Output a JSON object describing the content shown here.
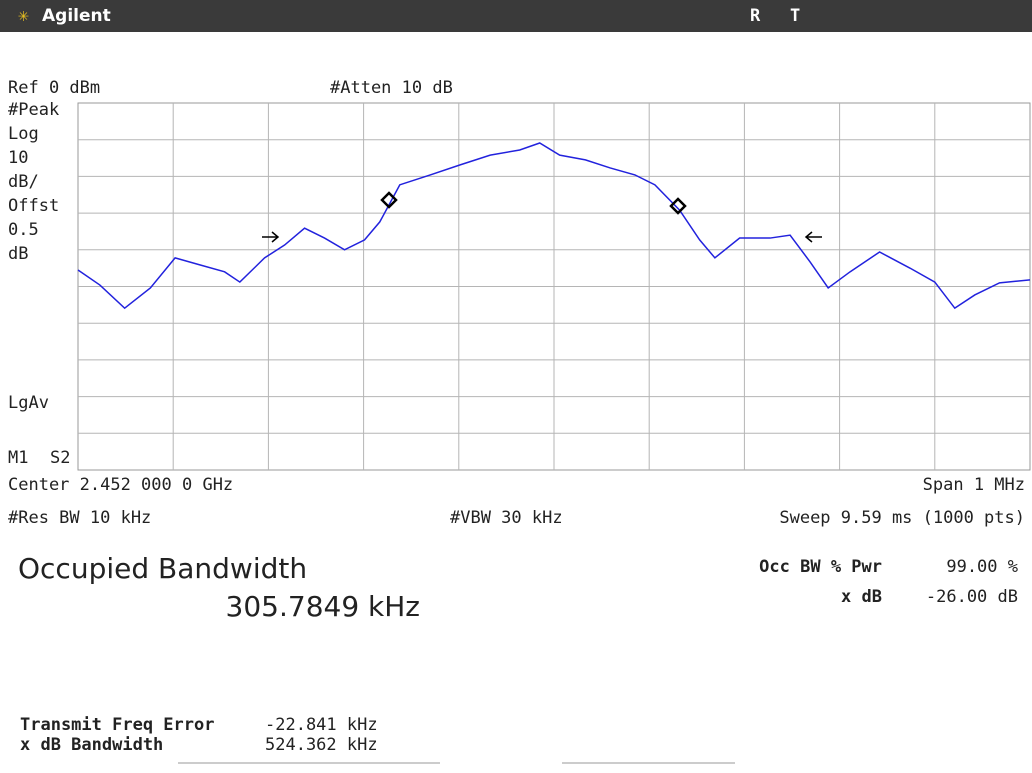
{
  "header": {
    "brand": "Agilent",
    "flags": [
      "R",
      "T"
    ]
  },
  "settings": {
    "ref": "Ref 0 dBm",
    "atten": "#Atten 10 dB",
    "left": [
      "#Peak",
      "Log",
      "10",
      "dB/",
      "Offst",
      "0.5",
      "dB"
    ],
    "avg": "LgAv",
    "marks": [
      "M1",
      "S2"
    ],
    "center": "Center 2.452 000 0 GHz",
    "span": "Span 1 MHz",
    "rbw": "#Res BW 10 kHz",
    "vbw": "#VBW 30 kHz",
    "sweep": "Sweep 9.59 ms (1000 pts)"
  },
  "trace": {
    "x": [
      -500,
      -477,
      -451,
      -424,
      -398,
      -372,
      -346,
      -330,
      -304,
      -283,
      -262,
      -241,
      -220,
      -199,
      -183,
      -162,
      -130,
      -99,
      -67,
      -36,
      -15,
      6,
      33,
      59,
      85,
      106,
      132,
      153,
      169,
      195,
      227,
      248,
      269,
      288,
      311,
      342,
      374,
      400,
      421,
      442,
      468,
      500
    ],
    "values": [
      -45.5,
      -49.6,
      -55.9,
      -50.4,
      -42.2,
      -44.1,
      -46,
      -48.8,
      -42.2,
      -38.7,
      -34.1,
      -36.8,
      -40,
      -37.3,
      -32.4,
      -22.3,
      -19.6,
      -16.9,
      -14.2,
      -12.8,
      -10.9,
      -14.2,
      -15.5,
      -17.7,
      -19.6,
      -22.3,
      -29.2,
      -37.3,
      -42.2,
      -36.8,
      -36.8,
      -36,
      -43.3,
      -50.4,
      -46,
      -40.6,
      -45,
      -48.8,
      -55.9,
      -52.3,
      -49,
      -48.2
    ]
  },
  "result": {
    "title": "Occupied Bandwidth",
    "value": "305.7849 kHz",
    "pwr_label": "Occ BW % Pwr",
    "pwr_value": "99.00 %",
    "xdb_label": "x dB",
    "xdb_value": "-26.00 dB"
  },
  "errors": {
    "rows": [
      [
        "Transmit Freq Error",
        "-22.841 kHz"
      ],
      [
        "x dB Bandwidth",
        "524.362 kHz"
      ]
    ]
  }
}
